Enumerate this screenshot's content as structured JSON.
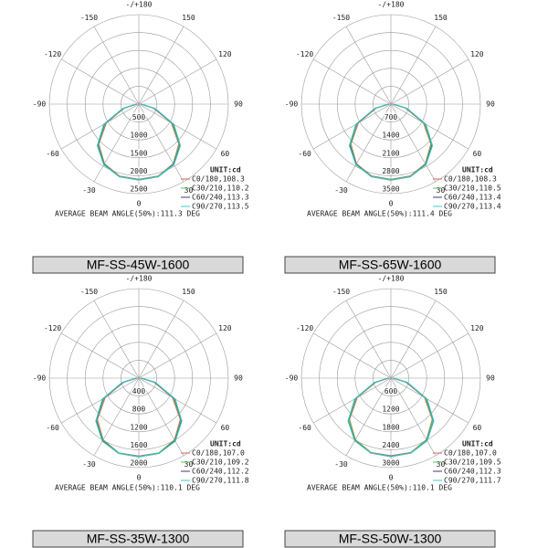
{
  "chart_data": [
    {
      "type": "polar",
      "title": "MF-SS-45W-1600",
      "unit": "UNIT:cd",
      "footer": "AVERAGE BEAM ANGLE(50%):111.3 DEG",
      "xlim": [
        -180,
        180
      ],
      "xticks": [
        {
          "value": 180,
          "label": "-/+180"
        },
        -150,
        150,
        -120,
        120,
        -90,
        90,
        -60,
        60,
        -30,
        30,
        0
      ],
      "ylim": [
        0,
        2500
      ],
      "yticks": [
        500,
        1000,
        1500,
        2000,
        2500
      ],
      "x": [
        -90,
        -75,
        -60,
        -45,
        -30,
        -15,
        0,
        15,
        30,
        45,
        60,
        75,
        90
      ],
      "series": [
        {
          "name": "C0/180,108.3",
          "color": "#e06060",
          "values": [
            50,
            420,
            1050,
            1580,
            1920,
            2080,
            2100,
            2080,
            1920,
            1580,
            1050,
            420,
            50
          ]
        },
        {
          "name": "C30/210,110.2",
          "color": "#5cbf5c",
          "values": [
            60,
            440,
            1080,
            1600,
            1930,
            2090,
            2110,
            2090,
            1930,
            1600,
            1080,
            440,
            60
          ]
        },
        {
          "name": "C60/240,113.3",
          "color": "#3c3c6c",
          "values": [
            70,
            460,
            1120,
            1630,
            1950,
            2100,
            2120,
            2100,
            1950,
            1630,
            1120,
            460,
            70
          ]
        },
        {
          "name": "C90/270,113.5",
          "color": "#3cc8c8",
          "values": [
            70,
            470,
            1130,
            1640,
            1960,
            2100,
            2120,
            2100,
            1960,
            1640,
            1130,
            470,
            70
          ]
        }
      ]
    },
    {
      "type": "polar",
      "title": "MF-SS-65W-1600",
      "unit": "UNIT:cd",
      "footer": "AVERAGE BEAM ANGLE(50%):111.4 DEG",
      "xlim": [
        -180,
        180
      ],
      "xticks": [
        {
          "value": 180,
          "label": "-/+180"
        },
        -150,
        150,
        -120,
        120,
        -90,
        90,
        -60,
        60,
        -30,
        30,
        0
      ],
      "ylim": [
        0,
        3500
      ],
      "yticks": [
        700,
        1400,
        2100,
        2800,
        3500
      ],
      "x": [
        -90,
        -75,
        -60,
        -45,
        -30,
        -15,
        0,
        15,
        30,
        45,
        60,
        75,
        90
      ],
      "series": [
        {
          "name": "C0/180,108.3",
          "color": "#e06060",
          "values": [
            70,
            590,
            1470,
            2210,
            2690,
            2910,
            2940,
            2910,
            2690,
            2210,
            1470,
            590,
            70
          ]
        },
        {
          "name": "C30/210,110.5",
          "color": "#5cbf5c",
          "values": [
            80,
            620,
            1510,
            2240,
            2700,
            2930,
            2950,
            2930,
            2700,
            2240,
            1510,
            620,
            80
          ]
        },
        {
          "name": "C60/240,113.4",
          "color": "#3c3c6c",
          "values": [
            100,
            640,
            1570,
            2280,
            2730,
            2940,
            2970,
            2940,
            2730,
            2280,
            1570,
            640,
            100
          ]
        },
        {
          "name": "C90/270,113.4",
          "color": "#3cc8c8",
          "values": [
            100,
            660,
            1580,
            2300,
            2740,
            2940,
            2970,
            2940,
            2740,
            2300,
            1580,
            660,
            100
          ]
        }
      ]
    },
    {
      "type": "polar",
      "title": "MF-SS-35W-1300",
      "unit": "UNIT:cd",
      "footer": "AVERAGE BEAM ANGLE(50%):110.1 DEG",
      "xlim": [
        -180,
        180
      ],
      "xticks": [
        {
          "value": 180,
          "label": "-/+180"
        },
        -150,
        150,
        -120,
        120,
        -90,
        90,
        -60,
        60,
        -30,
        30,
        0
      ],
      "ylim": [
        0,
        2000
      ],
      "yticks": [
        400,
        800,
        1200,
        1600,
        2000
      ],
      "x": [
        -90,
        -75,
        -60,
        -45,
        -30,
        -15,
        0,
        15,
        30,
        45,
        60,
        75,
        90
      ],
      "series": [
        {
          "name": "C0/180,107.0",
          "color": "#e06060",
          "values": [
            40,
            350,
            870,
            1310,
            1590,
            1730,
            1740,
            1730,
            1590,
            1310,
            870,
            350,
            40
          ]
        },
        {
          "name": "C30/210,109.2",
          "color": "#5cbf5c",
          "values": [
            50,
            370,
            900,
            1330,
            1600,
            1730,
            1750,
            1730,
            1600,
            1330,
            900,
            370,
            50
          ]
        },
        {
          "name": "C60/240,112.2",
          "color": "#3c3c6c",
          "values": [
            60,
            380,
            930,
            1350,
            1620,
            1740,
            1760,
            1740,
            1620,
            1350,
            930,
            380,
            60
          ]
        },
        {
          "name": "C90/270,111.8",
          "color": "#3cc8c8",
          "values": [
            60,
            390,
            940,
            1360,
            1630,
            1740,
            1760,
            1740,
            1630,
            1360,
            940,
            390,
            60
          ]
        }
      ]
    },
    {
      "type": "polar",
      "title": "MF-SS-50W-1300",
      "unit": "UNIT:cd",
      "footer": "AVERAGE BEAM ANGLE(50%):110.1 DEG",
      "xlim": [
        -180,
        180
      ],
      "xticks": [
        {
          "value": 180,
          "label": "-/+180"
        },
        -150,
        150,
        -120,
        120,
        -90,
        90,
        -60,
        60,
        -30,
        30,
        0
      ],
      "ylim": [
        0,
        3000
      ],
      "yticks": [
        600,
        1200,
        1800,
        2400,
        3000
      ],
      "x": [
        -90,
        -75,
        -60,
        -45,
        -30,
        -15,
        0,
        15,
        30,
        45,
        60,
        75,
        90
      ],
      "series": [
        {
          "name": "C0/180,107.0",
          "color": "#e06060",
          "values": [
            60,
            520,
            1300,
            1960,
            2380,
            2580,
            2600,
            2580,
            2380,
            1960,
            1300,
            520,
            60
          ]
        },
        {
          "name": "C30/210,109.5",
          "color": "#5cbf5c",
          "values": [
            70,
            550,
            1340,
            1980,
            2390,
            2590,
            2620,
            2590,
            2390,
            1980,
            1340,
            550,
            70
          ]
        },
        {
          "name": "C60/240,112.3",
          "color": "#3c3c6c",
          "values": [
            90,
            570,
            1390,
            2020,
            2420,
            2600,
            2630,
            2600,
            2420,
            2020,
            1390,
            570,
            90
          ]
        },
        {
          "name": "C90/270,111.7",
          "color": "#3cc8c8",
          "values": [
            90,
            580,
            1400,
            2030,
            2430,
            2600,
            2630,
            2600,
            2430,
            2030,
            1400,
            580,
            90
          ]
        }
      ]
    }
  ]
}
